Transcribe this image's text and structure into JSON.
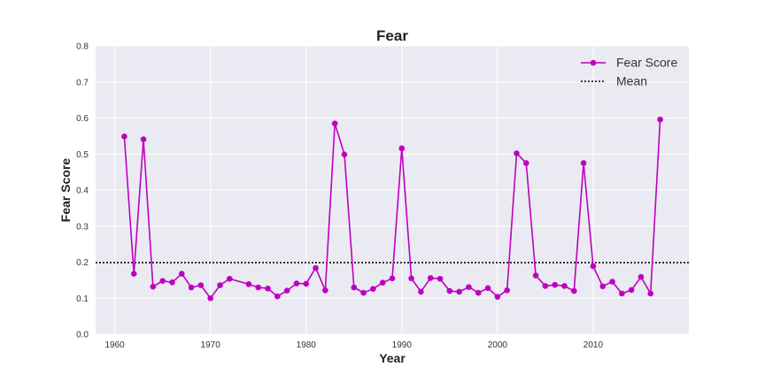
{
  "chart_data": {
    "type": "line",
    "title": "Fear",
    "xlabel": "Year",
    "ylabel": "Fear Score",
    "xlim": [
      1958,
      2020
    ],
    "ylim": [
      0.0,
      0.8
    ],
    "xticks": [
      1960,
      1970,
      1980,
      1990,
      2000,
      2010
    ],
    "yticks": [
      0.0,
      0.1,
      0.2,
      0.3,
      0.4,
      0.5,
      0.6,
      0.7,
      0.8
    ],
    "xtick_labels": [
      "1960",
      "1970",
      "1980",
      "1990",
      "2000",
      "2010"
    ],
    "ytick_labels": [
      "0.0",
      "0.1",
      "0.2",
      "0.3",
      "0.4",
      "0.5",
      "0.6",
      "0.7",
      "0.8"
    ],
    "grid": true,
    "legend_position": "top-right",
    "series": [
      {
        "name": "Fear Score",
        "color": "#bf00bf",
        "marker": "circle",
        "x": [
          1961,
          1962,
          1963,
          1964,
          1965,
          1966,
          1967,
          1968,
          1969,
          1970,
          1971,
          1972,
          1974,
          1975,
          1976,
          1977,
          1978,
          1979,
          1980,
          1981,
          1982,
          1983,
          1984,
          1985,
          1986,
          1987,
          1988,
          1989,
          1990,
          1991,
          1992,
          1993,
          1994,
          1995,
          1996,
          1997,
          1998,
          1999,
          2000,
          2001,
          2002,
          2003,
          2004,
          2005,
          2006,
          2007,
          2008,
          2009,
          2010,
          2011,
          2012,
          2013,
          2014,
          2015,
          2016,
          2017
        ],
        "y": [
          0.549,
          0.168,
          0.541,
          0.132,
          0.148,
          0.144,
          0.168,
          0.13,
          0.136,
          0.1,
          0.136,
          0.154,
          0.139,
          0.13,
          0.127,
          0.105,
          0.121,
          0.141,
          0.14,
          0.184,
          0.122,
          0.585,
          0.499,
          0.13,
          0.115,
          0.126,
          0.143,
          0.155,
          0.516,
          0.155,
          0.118,
          0.156,
          0.154,
          0.12,
          0.118,
          0.131,
          0.115,
          0.128,
          0.104,
          0.122,
          0.502,
          0.475,
          0.163,
          0.134,
          0.137,
          0.134,
          0.12,
          0.475,
          0.189,
          0.133,
          0.146,
          0.113,
          0.123,
          0.159,
          0.113,
          0.596
        ]
      },
      {
        "name": "Mean",
        "color": "#000000",
        "style": "dotted",
        "y": 0.199
      }
    ]
  }
}
